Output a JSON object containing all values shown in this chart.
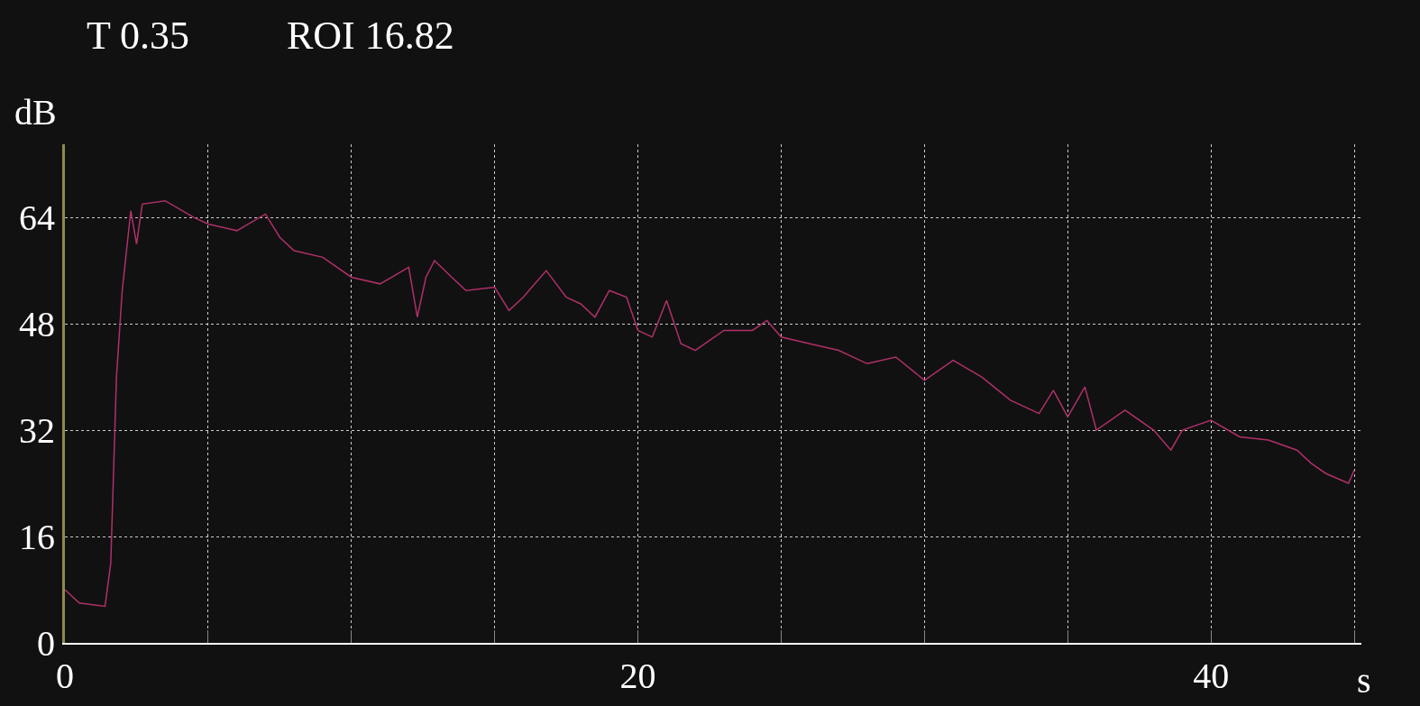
{
  "chart_data": {
    "type": "line",
    "xlabel": "s",
    "ylabel": "dB",
    "annotations": [
      "T 0.35",
      "ROI 16.82"
    ],
    "x": [
      0,
      0.5,
      1.4,
      1.6,
      1.8,
      2.0,
      2.3,
      2.5,
      2.7,
      3.5,
      4.5,
      5,
      6,
      7,
      7.5,
      8,
      9,
      10,
      11,
      12,
      12.3,
      12.6,
      12.9,
      13.5,
      14,
      15,
      15.5,
      16,
      16.8,
      17.5,
      18,
      18.5,
      19,
      19.6,
      20,
      20.5,
      21,
      21.5,
      22,
      23,
      24,
      24.5,
      25,
      26,
      27,
      28,
      29,
      30,
      31,
      32,
      33,
      34,
      34.5,
      35,
      35.6,
      36,
      37,
      38,
      38.6,
      39,
      40,
      41,
      42,
      43,
      43.5,
      44,
      44.8,
      45
    ],
    "series": [
      {
        "color": "#b0306a",
        "values": [
          8,
          6,
          5.5,
          12,
          40,
          53,
          65,
          60,
          66,
          66.5,
          64,
          63,
          62,
          64.5,
          61,
          59,
          58,
          55,
          54,
          56.5,
          49,
          55,
          57.5,
          55,
          53,
          53.5,
          50,
          52,
          56,
          52,
          51,
          49,
          53,
          52,
          47,
          46,
          51.5,
          45,
          44,
          47,
          47,
          48.5,
          46,
          45,
          44,
          42,
          43,
          39.5,
          42.5,
          40,
          36.5,
          34.5,
          38,
          34,
          38.5,
          32,
          35,
          32,
          29,
          32,
          33.5,
          31,
          30.5,
          29,
          27,
          25.5,
          24,
          26
        ]
      }
    ],
    "xlim": [
      0,
      45.25
    ],
    "ylim": [
      0,
      75
    ],
    "xticks": [
      0,
      {
        "value": 5,
        "label": null
      },
      {
        "value": 10,
        "label": null
      },
      {
        "value": 15,
        "label": null
      },
      20,
      {
        "value": 25,
        "label": null
      },
      {
        "value": 30,
        "label": null
      },
      {
        "value": 35,
        "label": null
      },
      40,
      {
        "value": 45,
        "label": null
      }
    ],
    "yticks": [
      0,
      16,
      32,
      48,
      64
    ],
    "grid": true,
    "legend": false,
    "marker": "none",
    "line_style": "solid"
  }
}
